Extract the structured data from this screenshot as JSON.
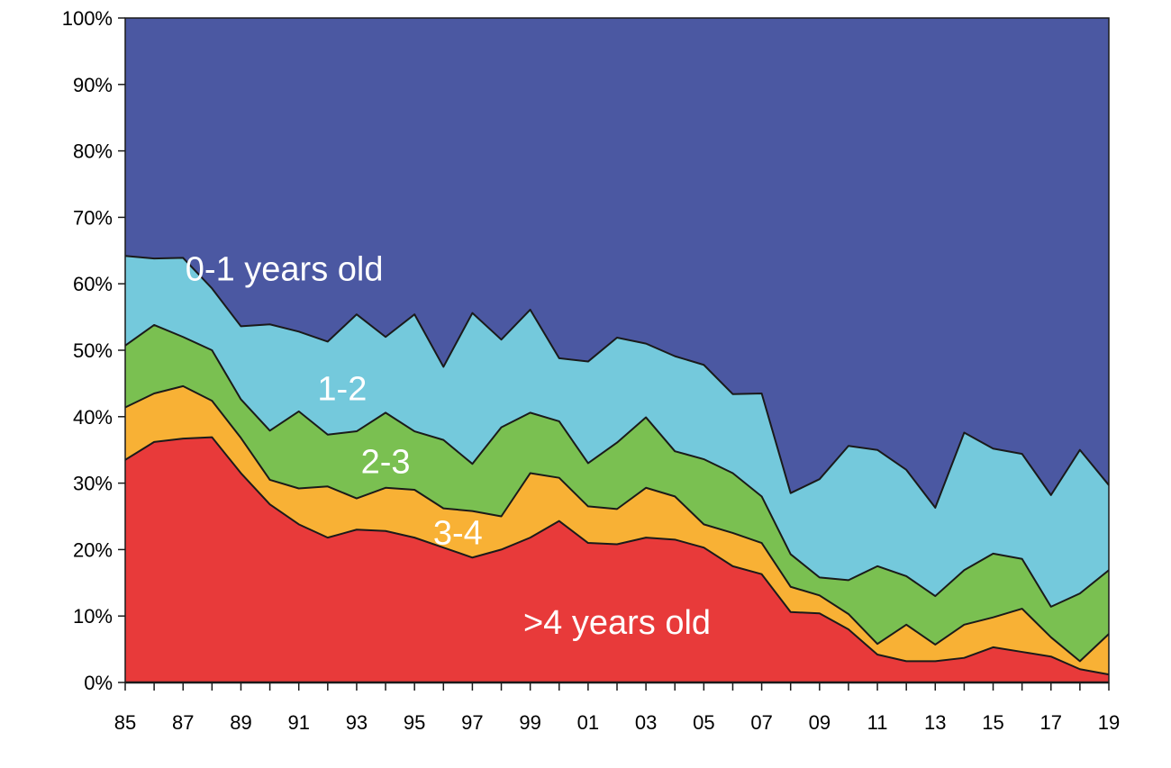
{
  "chart_data": {
    "type": "area",
    "stacked": true,
    "percent": true,
    "x": [
      "85",
      "86",
      "87",
      "88",
      "89",
      "90",
      "91",
      "92",
      "93",
      "94",
      "95",
      "96",
      "97",
      "98",
      "99",
      "00",
      "01",
      "02",
      "03",
      "04",
      "05",
      "06",
      "07",
      "08",
      "09",
      "10",
      "11",
      "12",
      "13",
      "14",
      "15",
      "16",
      "17",
      "18",
      "19"
    ],
    "x_tick_labels": [
      "85",
      "87",
      "89",
      "91",
      "93",
      "95",
      "97",
      "99",
      "01",
      "03",
      "05",
      "07",
      "09",
      "11",
      "13",
      "15",
      "17",
      "19"
    ],
    "y_tick_labels": [
      "0%",
      "10%",
      "20%",
      "30%",
      "40%",
      "50%",
      "60%",
      "70%",
      "80%",
      "90%",
      "100%"
    ],
    "ylim": [
      0,
      100
    ],
    "grid": false,
    "legend": "none",
    "series": [
      {
        "name": ">4 years old",
        "color": "#e83a3a",
        "values": [
          33.5,
          36.2,
          36.7,
          36.9,
          31.5,
          26.8,
          23.8,
          21.8,
          23.0,
          22.8,
          21.8,
          20.3,
          18.8,
          20.0,
          21.8,
          24.3,
          21.0,
          20.8,
          21.8,
          21.5,
          20.3,
          17.5,
          16.3,
          10.6,
          10.4,
          8.0,
          4.2,
          3.2,
          3.2,
          3.7,
          5.3,
          4.6,
          3.9,
          2.0,
          1.2
        ]
      },
      {
        "name": "3-4",
        "color": "#f8b135",
        "values": [
          7.9,
          7.3,
          7.9,
          5.5,
          5.3,
          3.7,
          5.4,
          7.7,
          4.7,
          6.5,
          7.2,
          5.9,
          7.0,
          5.0,
          9.7,
          6.5,
          5.5,
          5.3,
          7.5,
          6.5,
          3.5,
          5.0,
          4.7,
          3.8,
          2.7,
          2.3,
          1.6,
          5.5,
          2.5,
          5.0,
          4.5,
          6.5,
          2.9,
          1.2,
          6.1
        ]
      },
      {
        "name": "2-3",
        "color": "#7ac051",
        "values": [
          9.3,
          10.3,
          7.4,
          7.6,
          5.8,
          7.4,
          11.6,
          7.8,
          10.1,
          11.3,
          8.8,
          10.3,
          7.1,
          13.4,
          9.1,
          8.5,
          6.5,
          10.0,
          10.6,
          6.8,
          9.8,
          9.0,
          7.0,
          4.9,
          2.7,
          5.1,
          11.7,
          7.3,
          7.3,
          8.2,
          9.6,
          7.5,
          4.6,
          10.2,
          9.6
        ]
      },
      {
        "name": "1-2",
        "color": "#74c9dc",
        "values": [
          13.5,
          10.0,
          11.9,
          9.3,
          11.0,
          16.0,
          12.0,
          14.0,
          17.6,
          11.4,
          17.6,
          11.0,
          22.7,
          13.2,
          15.5,
          9.5,
          15.3,
          15.8,
          11.1,
          14.3,
          14.2,
          11.9,
          15.5,
          9.2,
          14.8,
          20.2,
          17.5,
          16.0,
          13.3,
          20.7,
          15.8,
          15.8,
          16.8,
          21.6,
          12.8
        ]
      },
      {
        "name": "0-1 years old",
        "color": "#4b58a2",
        "values": [
          35.8,
          36.2,
          36.1,
          40.7,
          46.4,
          46.1,
          47.2,
          48.7,
          44.6,
          48.0,
          44.6,
          52.5,
          44.4,
          48.4,
          43.9,
          51.2,
          51.7,
          48.1,
          49.0,
          50.9,
          52.2,
          56.6,
          56.5,
          71.5,
          69.4,
          64.4,
          65.0,
          68.0,
          73.7,
          62.4,
          64.8,
          65.6,
          71.8,
          65.0,
          70.3
        ]
      }
    ],
    "annotations": [
      {
        "text": "0-1 years old",
        "series": "0-1 years old"
      },
      {
        "text": "1-2",
        "series": "1-2"
      },
      {
        "text": "2-3",
        "series": "2-3"
      },
      {
        "text": "3-4",
        "series": "3-4"
      },
      {
        "text": ">4 years old",
        "series": ">4 years old"
      }
    ]
  }
}
